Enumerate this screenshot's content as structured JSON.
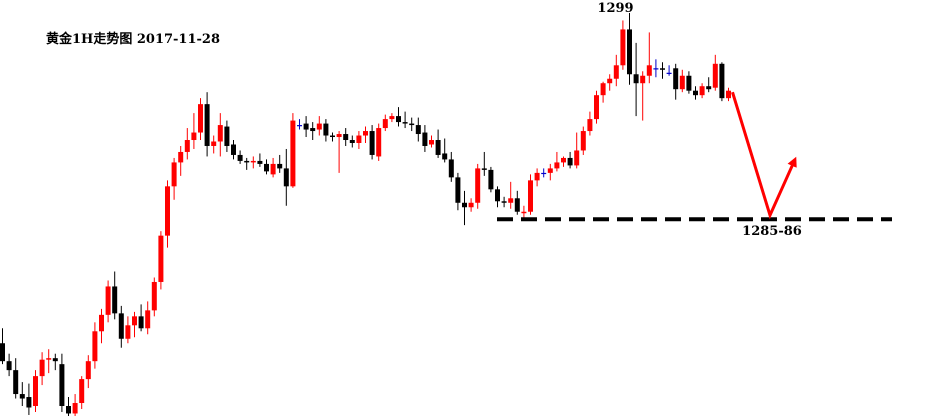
{
  "chart_data": {
    "type": "candlestick",
    "title": "黄金1H走势图 2017-11-28",
    "high_label": "1299",
    "support_label": "1285-86",
    "colors": {
      "up": "#ff0000",
      "down": "#000000",
      "doji": "#0000cc",
      "arrow": "#ff0000",
      "support": "#000000"
    },
    "ylim": [
      1273,
      1299.5
    ],
    "support_level": 1285.5,
    "candles": [
      [
        1277.2,
        1278.2,
        1275.8,
        1276.0
      ],
      [
        1276.0,
        1276.5,
        1275.0,
        1275.4
      ],
      [
        1275.4,
        1276.2,
        1273.5,
        1273.8
      ],
      [
        1273.8,
        1274.6,
        1273.0,
        1273.5
      ],
      [
        1273.6,
        1274.5,
        1272.4,
        1272.9
      ],
      [
        1273.0,
        1275.4,
        1272.6,
        1275.0
      ],
      [
        1275.0,
        1276.6,
        1274.4,
        1276.1
      ],
      [
        1276.1,
        1276.8,
        1275.2,
        1276.2
      ],
      [
        1276.2,
        1276.5,
        1275.4,
        1276.0
      ],
      [
        1275.8,
        1276.5,
        1272.6,
        1273.0
      ],
      [
        1273.0,
        1273.6,
        1272.0,
        1272.5
      ],
      [
        1272.5,
        1273.8,
        1272.0,
        1273.2
      ],
      [
        1273.2,
        1275.0,
        1272.8,
        1274.8
      ],
      [
        1274.8,
        1276.4,
        1274.2,
        1276.0
      ],
      [
        1276.0,
        1278.6,
        1275.5,
        1278.0
      ],
      [
        1278.0,
        1279.5,
        1277.2,
        1279.1
      ],
      [
        1279.1,
        1281.4,
        1278.6,
        1281.0
      ],
      [
        1281.0,
        1282.0,
        1278.8,
        1279.2
      ],
      [
        1279.2,
        1279.7,
        1276.9,
        1277.5
      ],
      [
        1277.5,
        1279.0,
        1277.2,
        1278.4
      ],
      [
        1278.4,
        1279.3,
        1277.6,
        1279.0
      ],
      [
        1279.0,
        1279.8,
        1278.0,
        1278.2
      ],
      [
        1278.2,
        1280.0,
        1277.8,
        1279.4
      ],
      [
        1279.4,
        1281.6,
        1279.0,
        1281.3
      ],
      [
        1281.3,
        1284.7,
        1280.8,
        1284.4
      ],
      [
        1284.4,
        1288.1,
        1283.6,
        1287.7
      ],
      [
        1287.7,
        1289.6,
        1286.8,
        1289.3
      ],
      [
        1289.3,
        1290.4,
        1288.4,
        1290.0
      ],
      [
        1290.0,
        1291.6,
        1289.5,
        1290.8
      ],
      [
        1290.8,
        1292.6,
        1290.2,
        1291.3
      ],
      [
        1291.3,
        1293.6,
        1290.8,
        1293.2
      ],
      [
        1293.2,
        1294.0,
        1289.7,
        1290.4
      ],
      [
        1290.4,
        1291.1,
        1289.9,
        1290.7
      ],
      [
        1290.7,
        1292.6,
        1289.7,
        1291.8
      ],
      [
        1291.7,
        1292.1,
        1290.0,
        1290.4
      ],
      [
        1290.5,
        1290.8,
        1289.5,
        1289.8
      ],
      [
        1289.8,
        1290.1,
        1289.2,
        1289.4
      ],
      [
        1289.4,
        1289.6,
        1288.8,
        1289.3
      ],
      [
        1289.3,
        1289.7,
        1288.9,
        1289.4
      ],
      [
        1289.4,
        1289.9,
        1289.0,
        1289.2
      ],
      [
        1289.2,
        1289.5,
        1288.5,
        1288.7
      ],
      [
        1288.5,
        1289.6,
        1288.3,
        1289.2
      ],
      [
        1289.2,
        1289.8,
        1288.6,
        1288.9
      ],
      [
        1288.9,
        1290.2,
        1286.4,
        1287.7
      ],
      [
        1287.7,
        1292.6,
        1287.6,
        1292.1
      ],
      [
        1291.8,
        1292.2,
        1291.5,
        1291.8
      ],
      [
        1291.9,
        1292.4,
        1291.0,
        1291.5
      ],
      [
        1291.6,
        1292.0,
        1290.8,
        1291.4
      ],
      [
        1291.5,
        1292.4,
        1291.1,
        1291.9
      ],
      [
        1291.9,
        1292.2,
        1290.7,
        1291.1
      ],
      [
        1291.1,
        1291.3,
        1290.7,
        1291.0
      ],
      [
        1291.0,
        1291.4,
        1288.6,
        1291.2
      ],
      [
        1291.2,
        1291.6,
        1290.4,
        1290.8
      ],
      [
        1290.8,
        1291.1,
        1290.3,
        1290.6
      ],
      [
        1290.6,
        1291.4,
        1290.2,
        1291.1
      ],
      [
        1291.1,
        1291.7,
        1290.6,
        1291.4
      ],
      [
        1291.4,
        1291.8,
        1289.5,
        1289.8
      ],
      [
        1289.7,
        1291.9,
        1289.4,
        1291.6
      ],
      [
        1291.6,
        1292.5,
        1291.4,
        1292.2
      ],
      [
        1292.2,
        1292.6,
        1292.0,
        1292.4
      ],
      [
        1292.4,
        1293.0,
        1291.7,
        1292.0
      ],
      [
        1292.0,
        1292.7,
        1291.6,
        1291.9
      ],
      [
        1291.9,
        1292.3,
        1291.4,
        1291.8
      ],
      [
        1291.8,
        1292.3,
        1290.7,
        1291.2
      ],
      [
        1291.3,
        1291.8,
        1290.0,
        1290.4
      ],
      [
        1290.5,
        1291.1,
        1290.3,
        1290.8
      ],
      [
        1290.8,
        1291.5,
        1289.6,
        1289.8
      ],
      [
        1289.9,
        1290.9,
        1289.3,
        1289.5
      ],
      [
        1289.5,
        1290.0,
        1288.0,
        1288.3
      ],
      [
        1288.3,
        1288.6,
        1286.1,
        1286.6
      ],
      [
        1286.6,
        1287.4,
        1285.1,
        1286.3
      ],
      [
        1286.3,
        1286.9,
        1286.0,
        1286.6
      ],
      [
        1286.6,
        1289.2,
        1286.2,
        1288.9
      ],
      [
        1288.9,
        1290.0,
        1288.4,
        1288.8
      ],
      [
        1288.8,
        1289.0,
        1287.3,
        1287.5
      ],
      [
        1287.5,
        1287.7,
        1286.3,
        1286.7
      ],
      [
        1286.7,
        1287.0,
        1286.3,
        1286.6
      ],
      [
        1286.6,
        1288.0,
        1286.2,
        1286.9
      ],
      [
        1286.9,
        1287.4,
        1285.8,
        1286.0
      ],
      [
        1285.9,
        1286.4,
        1285.6,
        1286.0
      ],
      [
        1286.0,
        1288.5,
        1285.8,
        1288.1
      ],
      [
        1288.1,
        1288.9,
        1287.7,
        1288.6
      ],
      [
        1288.6,
        1288.9,
        1288.3,
        1288.6
      ],
      [
        1288.6,
        1289.2,
        1288.1,
        1288.9
      ],
      [
        1288.9,
        1290.0,
        1288.7,
        1289.3
      ],
      [
        1289.3,
        1289.7,
        1289.0,
        1289.6
      ],
      [
        1289.6,
        1290.0,
        1288.9,
        1289.1
      ],
      [
        1289.1,
        1291.3,
        1288.9,
        1290.1
      ],
      [
        1290.1,
        1291.7,
        1289.8,
        1291.4
      ],
      [
        1291.4,
        1292.7,
        1291.1,
        1292.2
      ],
      [
        1292.2,
        1294.1,
        1291.9,
        1293.8
      ],
      [
        1293.8,
        1294.7,
        1293.3,
        1294.6
      ],
      [
        1294.6,
        1295.2,
        1294.1,
        1294.9
      ],
      [
        1294.9,
        1296.5,
        1294.4,
        1295.8
      ],
      [
        1295.8,
        1298.8,
        1295.5,
        1298.2
      ],
      [
        1298.2,
        1299.3,
        1294.5,
        1295.2
      ],
      [
        1295.2,
        1297.3,
        1292.4,
        1294.6
      ],
      [
        1294.6,
        1295.4,
        1292.1,
        1295.1
      ],
      [
        1295.1,
        1298.0,
        1294.6,
        1295.8
      ],
      [
        1295.6,
        1296.2,
        1295.0,
        1295.6
      ],
      [
        1295.6,
        1296.0,
        1294.9,
        1295.5
      ],
      [
        1295.3,
        1295.8,
        1295.1,
        1295.3
      ],
      [
        1295.6,
        1295.9,
        1293.5,
        1294.2
      ],
      [
        1294.2,
        1295.5,
        1294.0,
        1295.1
      ],
      [
        1295.1,
        1295.4,
        1293.9,
        1294.1
      ],
      [
        1294.1,
        1294.4,
        1293.5,
        1293.8
      ],
      [
        1293.8,
        1294.6,
        1293.6,
        1294.4
      ],
      [
        1294.4,
        1295.0,
        1294.0,
        1294.2
      ],
      [
        1294.3,
        1296.5,
        1294.1,
        1295.9
      ],
      [
        1295.9,
        1296.0,
        1293.4,
        1293.6
      ],
      [
        1293.6,
        1294.3,
        1293.4,
        1294.1
      ]
    ],
    "projection": [
      [
        1294.0,
        1285.5
      ],
      [
        1289.5
      ]
    ]
  }
}
